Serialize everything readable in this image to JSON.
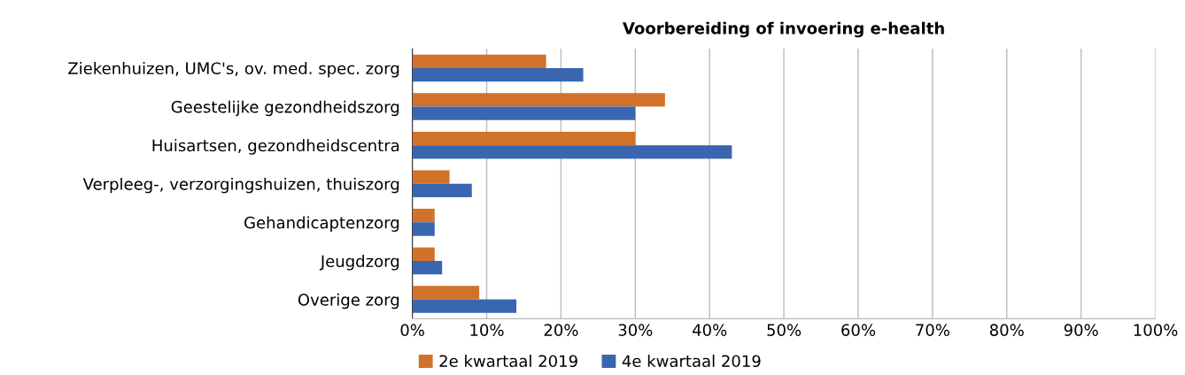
{
  "chart_data": {
    "type": "bar",
    "orientation": "horizontal",
    "title": "Voorbereiding of invoering e-health",
    "categories": [
      "Ziekenhuizen, UMC's, ov. med. spec. zorg",
      "Geestelijke gezondheidszorg",
      "Huisartsen, gezondheidscentra",
      "Verpleeg-, verzorgingshuizen, thuiszorg",
      "Gehandicaptenzorg",
      "Jeugdzorg",
      "Overige zorg"
    ],
    "series": [
      {
        "name": "2e kwartaal 2019",
        "color": "#d2722a",
        "values": [
          18,
          34,
          30,
          5,
          3,
          3,
          9
        ]
      },
      {
        "name": "4e kwartaal 2019",
        "color": "#3a66b0",
        "values": [
          23,
          30,
          43,
          8,
          3,
          4,
          14
        ]
      }
    ],
    "xlim": [
      0,
      100
    ],
    "xticks": [
      {
        "value": 0,
        "label": "0%"
      },
      {
        "value": 10,
        "label": "10%"
      },
      {
        "value": 20,
        "label": "20%"
      },
      {
        "value": 30,
        "label": "30%"
      },
      {
        "value": 40,
        "label": "40%"
      },
      {
        "value": 50,
        "label": "50%"
      },
      {
        "value": 60,
        "label": "60%"
      },
      {
        "value": 70,
        "label": "70%"
      },
      {
        "value": 80,
        "label": "80%"
      },
      {
        "value": 90,
        "label": "90%"
      },
      {
        "value": 100,
        "label": "100%"
      }
    ],
    "grid": "x",
    "legend": "bottom"
  }
}
